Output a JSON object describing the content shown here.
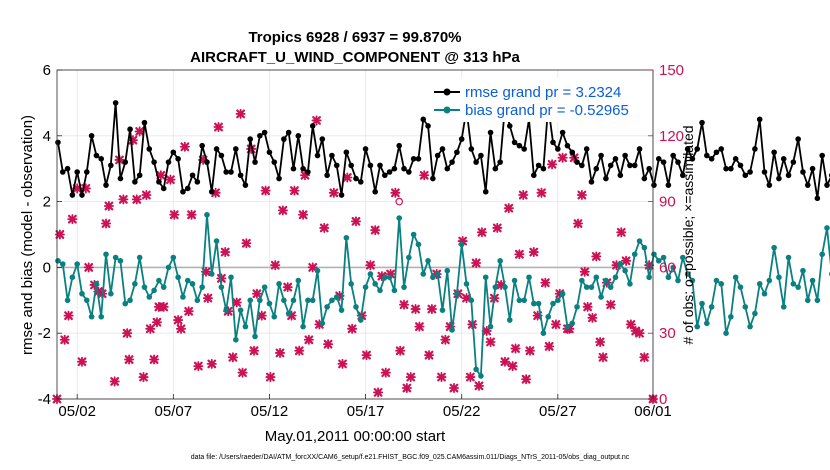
{
  "chart_data": {
    "type": "line",
    "title": "Tropics 6928 / 6937 = 99.870%",
    "subtitle": "AIRCRAFT_U_WIND_COMPONENT @ 313 hPa",
    "xlabel": "May.01,2011 00:00:00 start",
    "ylabel": "rmse and bias (model - observation)",
    "ylabel_right": "# of obs: o=possible; ×=assimilated",
    "footer": "data file: /Users/raeder/DAI/ATM_forcXX/CAM6_setup/f.e21.FHIST_BGC.f09_025.CAM6assim.011/Diags_NTrS_2011-05/obs_diag_output.nc",
    "ylim": [
      -4,
      6
    ],
    "ylim_right": [
      0,
      150
    ],
    "xlim": [
      0.2,
      31.2
    ],
    "y_ticks": [
      "-4",
      "-2",
      "0",
      "2",
      "4",
      "6"
    ],
    "y_ticks_right": [
      "0",
      "30",
      "60",
      "90",
      "120",
      "150"
    ],
    "x_ticks": [
      {
        "pos": 1.25,
        "label": "05/02"
      },
      {
        "pos": 6.25,
        "label": "05/07"
      },
      {
        "pos": 11.25,
        "label": "05/12"
      },
      {
        "pos": 16.25,
        "label": "05/17"
      },
      {
        "pos": 21.25,
        "label": "05/22"
      },
      {
        "pos": 26.25,
        "label": "05/27"
      },
      {
        "pos": 31.25,
        "label": "06/01"
      }
    ],
    "legend": [
      {
        "name": "rmse",
        "label": "rmse grand pr = 3.2324",
        "color": "#0a5fd6"
      },
      {
        "name": "bias",
        "label": "bias grand pr = -0.52965",
        "color": "#0a5fd6"
      }
    ],
    "colors": {
      "rmse": "#000000",
      "bias": "#0a8080",
      "obs": "#cc1155",
      "zero_line": "#b3b3b3",
      "grid": "#e6e6e6"
    },
    "series": [
      {
        "name": "rmse",
        "color": "#000000",
        "x_start": 0.25,
        "x_step": 0.25,
        "values": [
          3.8,
          2.9,
          3.0,
          2.2,
          2.9,
          2.2,
          2.9,
          4.0,
          3.4,
          3.3,
          2.5,
          3.1,
          5.0,
          2.7,
          3.2,
          4.2,
          2.6,
          2.8,
          4.4,
          3.6,
          3.2,
          2.6,
          2.4,
          3.2,
          3.5,
          3.3,
          2.3,
          2.4,
          2.8,
          2.6,
          3.7,
          3.2,
          2.3,
          3.6,
          3.4,
          2.9,
          2.9,
          3.6,
          2.8,
          2.5,
          3.9,
          3.2,
          4.0,
          4.1,
          3.5,
          3.2,
          2.7,
          3.9,
          4.1,
          3.0,
          4.0,
          3.0,
          2.9,
          4.3,
          3.4,
          3.9,
          2.8,
          3.4,
          3.1,
          2.2,
          3.5,
          3.1,
          2.7,
          2.6,
          3.6,
          3.1,
          2.3,
          3.1,
          2.8,
          2.9,
          3.0,
          3.7,
          3.0,
          2.9,
          3.3,
          3.3,
          4.5,
          4.3,
          2.7,
          3.4,
          3.6,
          3.0,
          3.2,
          3.5,
          3.9,
          4.8,
          3.6,
          3.2,
          3.4,
          2.3,
          4.1,
          3.0,
          3.2,
          4.9,
          4.3,
          3.8,
          3.7,
          3.6,
          4.5,
          2.8,
          3.1,
          3.0,
          4.9,
          3.8,
          3.6,
          4.1,
          3.7,
          3.5,
          3.2,
          3.1,
          3.6,
          2.6,
          3.0,
          3.4,
          2.7,
          3.1,
          3.3,
          2.8,
          3.4,
          3.1,
          3.1,
          3.6,
          2.7,
          3.0,
          2.5,
          3.3,
          3.2,
          2.5,
          3.4,
          3.2,
          2.8,
          3.6,
          3.3,
          3.6,
          4.4,
          3.4,
          3.3,
          3.5,
          3.6,
          3.0,
          3.0,
          3.3,
          3.1,
          2.8,
          2.9,
          3.6,
          4.5,
          2.9,
          2.5,
          3.5,
          2.7,
          3.3,
          2.8,
          3.2,
          3.9,
          2.9,
          2.5,
          3.0,
          2.1,
          3.4,
          2.5,
          2.8,
          3.6,
          2.9,
          3.9,
          3.6,
          3.3,
          3.5,
          3.9,
          3.4,
          2.9,
          3.2,
          2.9,
          2.6,
          3.0,
          2.5,
          3.7,
          2.4,
          2.8,
          3.1,
          3.7,
          3.6,
          4.0,
          3.6,
          2.5,
          3.7,
          4.2,
          3.4,
          3.0,
          4.6,
          3.4
        ]
      },
      {
        "name": "bias",
        "color": "#0a8080",
        "x_start": 0.25,
        "x_step": 0.25,
        "values": [
          0.2,
          0.1,
          -1.0,
          -0.3,
          0.1,
          -0.8,
          -1.0,
          -1.5,
          -0.5,
          -1.5,
          0.4,
          -0.8,
          0.3,
          0.2,
          -1.1,
          -1.0,
          -0.5,
          0.3,
          -0.6,
          -0.9,
          -0.7,
          -0.4,
          -0.6,
          0.0,
          0.3,
          -0.3,
          -0.9,
          -0.4,
          -0.5,
          -1.0,
          -0.6,
          1.6,
          -0.2,
          0.8,
          -0.6,
          -1.3,
          -0.3,
          -2.2,
          -1.3,
          -1.8,
          -1.0,
          -2.1,
          -1.0,
          -0.6,
          -1.1,
          -1.5,
          -0.5,
          -1.0,
          -1.4,
          -1.0,
          -0.4,
          -1.8,
          -1.0,
          -1.0,
          -0.1,
          -1.7,
          -1.2,
          -1.0,
          -0.9,
          -1.3,
          0.9,
          -0.5,
          -1.2,
          -1.6,
          -0.6,
          -0.2,
          -0.5,
          -0.7,
          -0.3,
          -0.3,
          -0.7,
          1.5,
          -0.6,
          0.3,
          1.0,
          0.7,
          -0.2,
          0.2,
          -0.3,
          -0.2,
          -1.3,
          -0.1,
          -1.9,
          -0.8,
          0.7,
          -0.5,
          -1.0,
          -3.1,
          -3.3,
          -0.3,
          -1.8,
          -0.6,
          0.2,
          -0.6,
          -1.6,
          -0.4,
          -1.0,
          -1.0,
          -0.3,
          -1.1,
          -1.1,
          -2.0,
          -1.5,
          -1.1,
          -1.0,
          -0.8,
          -1.8,
          -1.7,
          -1.2,
          -0.4,
          -0.6,
          -0.6,
          -0.3,
          -0.9,
          -0.4,
          -0.6,
          -0.3,
          0.1,
          -0.1,
          -0.5,
          0.4,
          0.8,
          0.6,
          -0.3,
          0.4,
          0.2,
          0.3,
          -0.3,
          0.0,
          -0.4,
          0.3,
          -0.2,
          -0.4,
          -1.8,
          -1.1,
          -1.7,
          -1.2,
          -0.4,
          -0.5,
          -2.0,
          -1.5,
          -0.3,
          -0.6,
          -1.2,
          -1.8,
          -1.4,
          -0.5,
          -0.8,
          -0.4,
          0.6,
          -0.3,
          -1.2,
          0.3,
          -0.5,
          -0.6,
          -0.1,
          -1.0,
          -0.4,
          -1.0,
          0.4,
          1.2,
          -0.2,
          -0.7,
          0.0,
          -0.9,
          -0.2,
          0.0,
          0.0,
          -0.8,
          -0.6,
          0.1,
          -0.6,
          0.2,
          -0.9,
          -0.4,
          -1.3,
          -0.7,
          0.6,
          0.7,
          0.6,
          0.8,
          0.5,
          -0.2,
          0.7,
          -0.2,
          0.4,
          0.5,
          0.0,
          0.1,
          2.5,
          -1.2
        ]
      },
      {
        "name": "obs assimilated",
        "color": "#cc1155",
        "marker": "x",
        "points": [
          [
            0.2,
            0
          ],
          [
            0.35,
            75
          ],
          [
            0.6,
            27
          ],
          [
            0.8,
            38
          ],
          [
            1.0,
            82
          ],
          [
            1.25,
            96
          ],
          [
            1.5,
            17
          ],
          [
            1.7,
            96
          ],
          [
            1.85,
            60
          ],
          [
            2.15,
            52
          ],
          [
            2.35,
            49
          ],
          [
            2.55,
            48
          ],
          [
            2.75,
            80
          ],
          [
            2.9,
            88
          ],
          [
            3.2,
            8
          ],
          [
            3.45,
            109
          ],
          [
            3.65,
            91
          ],
          [
            3.85,
            30
          ],
          [
            3.95,
            18
          ],
          [
            4.15,
            118
          ],
          [
            4.35,
            91
          ],
          [
            4.5,
            122
          ],
          [
            4.7,
            10
          ],
          [
            4.85,
            93
          ],
          [
            5.05,
            32
          ],
          [
            5.25,
            18
          ],
          [
            5.4,
            35
          ],
          [
            5.5,
            42
          ],
          [
            5.6,
            102
          ],
          [
            5.75,
            42
          ],
          [
            6.1,
            100
          ],
          [
            6.3,
            84
          ],
          [
            6.5,
            36
          ],
          [
            6.65,
            32
          ],
          [
            6.85,
            115
          ],
          [
            7.05,
            40
          ],
          [
            7.2,
            84
          ],
          [
            7.55,
            15
          ],
          [
            7.8,
            109
          ],
          [
            7.95,
            58
          ],
          [
            8.05,
            46
          ],
          [
            8.25,
            16
          ],
          [
            8.45,
            94
          ],
          [
            8.6,
            124
          ],
          [
            8.75,
            55
          ],
          [
            8.95,
            67
          ],
          [
            9.1,
            40
          ],
          [
            9.35,
            19
          ],
          [
            9.55,
            44
          ],
          [
            9.75,
            130
          ],
          [
            9.85,
            12
          ],
          [
            10.05,
            71
          ],
          [
            10.3,
            114
          ],
          [
            10.45,
            22
          ],
          [
            10.6,
            48
          ],
          [
            10.85,
            38
          ],
          [
            11.05,
            95
          ],
          [
            11.3,
            10
          ],
          [
            11.55,
            61
          ],
          [
            11.8,
            21
          ],
          [
            11.95,
            86
          ],
          [
            12.2,
            51
          ],
          [
            12.4,
            38
          ],
          [
            12.55,
            95
          ],
          [
            12.8,
            22
          ],
          [
            13.0,
            84
          ],
          [
            13.1,
            102
          ],
          [
            13.3,
            27
          ],
          [
            13.5,
            60
          ],
          [
            13.7,
            127
          ],
          [
            13.85,
            34
          ],
          [
            14.1,
            78
          ],
          [
            14.3,
            25
          ],
          [
            14.6,
            94
          ],
          [
            14.9,
            47
          ],
          [
            15.05,
            16
          ],
          [
            15.3,
            101
          ],
          [
            15.55,
            32
          ],
          [
            15.75,
            81
          ],
          [
            16.05,
            38
          ],
          [
            16.3,
            20
          ],
          [
            16.5,
            61
          ],
          [
            16.75,
            77
          ],
          [
            16.9,
            3
          ],
          [
            17.1,
            56
          ],
          [
            17.3,
            12
          ],
          [
            17.55,
            57
          ],
          [
            17.8,
            94
          ],
          [
            18.05,
            22
          ],
          [
            18.25,
            43
          ],
          [
            18.4,
            5
          ],
          [
            18.6,
            10
          ],
          [
            18.85,
            41
          ],
          [
            19.05,
            33
          ],
          [
            19.3,
            102
          ],
          [
            19.55,
            20
          ],
          [
            19.7,
            41
          ],
          [
            19.95,
            57
          ],
          [
            20.2,
            10
          ],
          [
            20.4,
            27
          ],
          [
            20.65,
            33
          ],
          [
            20.85,
            5
          ],
          [
            21.05,
            48
          ],
          [
            21.3,
            72
          ],
          [
            21.5,
            46
          ],
          [
            21.7,
            10
          ],
          [
            21.8,
            34
          ],
          [
            22.0,
            62
          ],
          [
            22.15,
            6
          ],
          [
            22.3,
            76
          ],
          [
            22.55,
            31
          ],
          [
            22.75,
            26
          ],
          [
            22.95,
            46
          ],
          [
            23.1,
            78
          ],
          [
            23.3,
            52
          ],
          [
            23.5,
            17
          ],
          [
            23.7,
            87
          ],
          [
            23.9,
            15
          ],
          [
            24.05,
            23
          ],
          [
            24.25,
            66
          ],
          [
            24.45,
            93
          ],
          [
            24.6,
            9
          ],
          [
            24.8,
            22
          ],
          [
            25.0,
            67
          ],
          [
            25.2,
            38
          ],
          [
            25.4,
            94
          ],
          [
            25.6,
            53
          ],
          [
            25.8,
            24
          ],
          [
            25.95,
            107
          ],
          [
            26.15,
            34
          ],
          [
            26.35,
            48
          ],
          [
            26.5,
            110
          ],
          [
            26.75,
            32
          ],
          [
            26.85,
            32
          ],
          [
            27.1,
            110
          ],
          [
            27.3,
            80
          ],
          [
            27.5,
            93
          ],
          [
            27.65,
            58
          ],
          [
            27.8,
            42
          ],
          [
            28.05,
            37
          ],
          [
            28.25,
            65
          ],
          [
            28.45,
            26
          ],
          [
            28.6,
            19
          ],
          [
            28.8,
            53
          ],
          [
            29.0,
            43
          ],
          [
            29.3,
            61
          ],
          [
            29.55,
            76
          ],
          [
            29.8,
            63
          ],
          [
            30.05,
            34
          ],
          [
            30.3,
            31
          ],
          [
            30.5,
            30
          ],
          [
            30.75,
            19
          ],
          [
            31.0,
            61
          ],
          [
            31.2,
            0
          ]
        ]
      },
      {
        "name": "obs possible",
        "color": "#cc1155",
        "marker": "o",
        "points": [
          [
            18.0,
            90
          ],
          [
            31.2,
            0
          ]
        ]
      }
    ]
  }
}
